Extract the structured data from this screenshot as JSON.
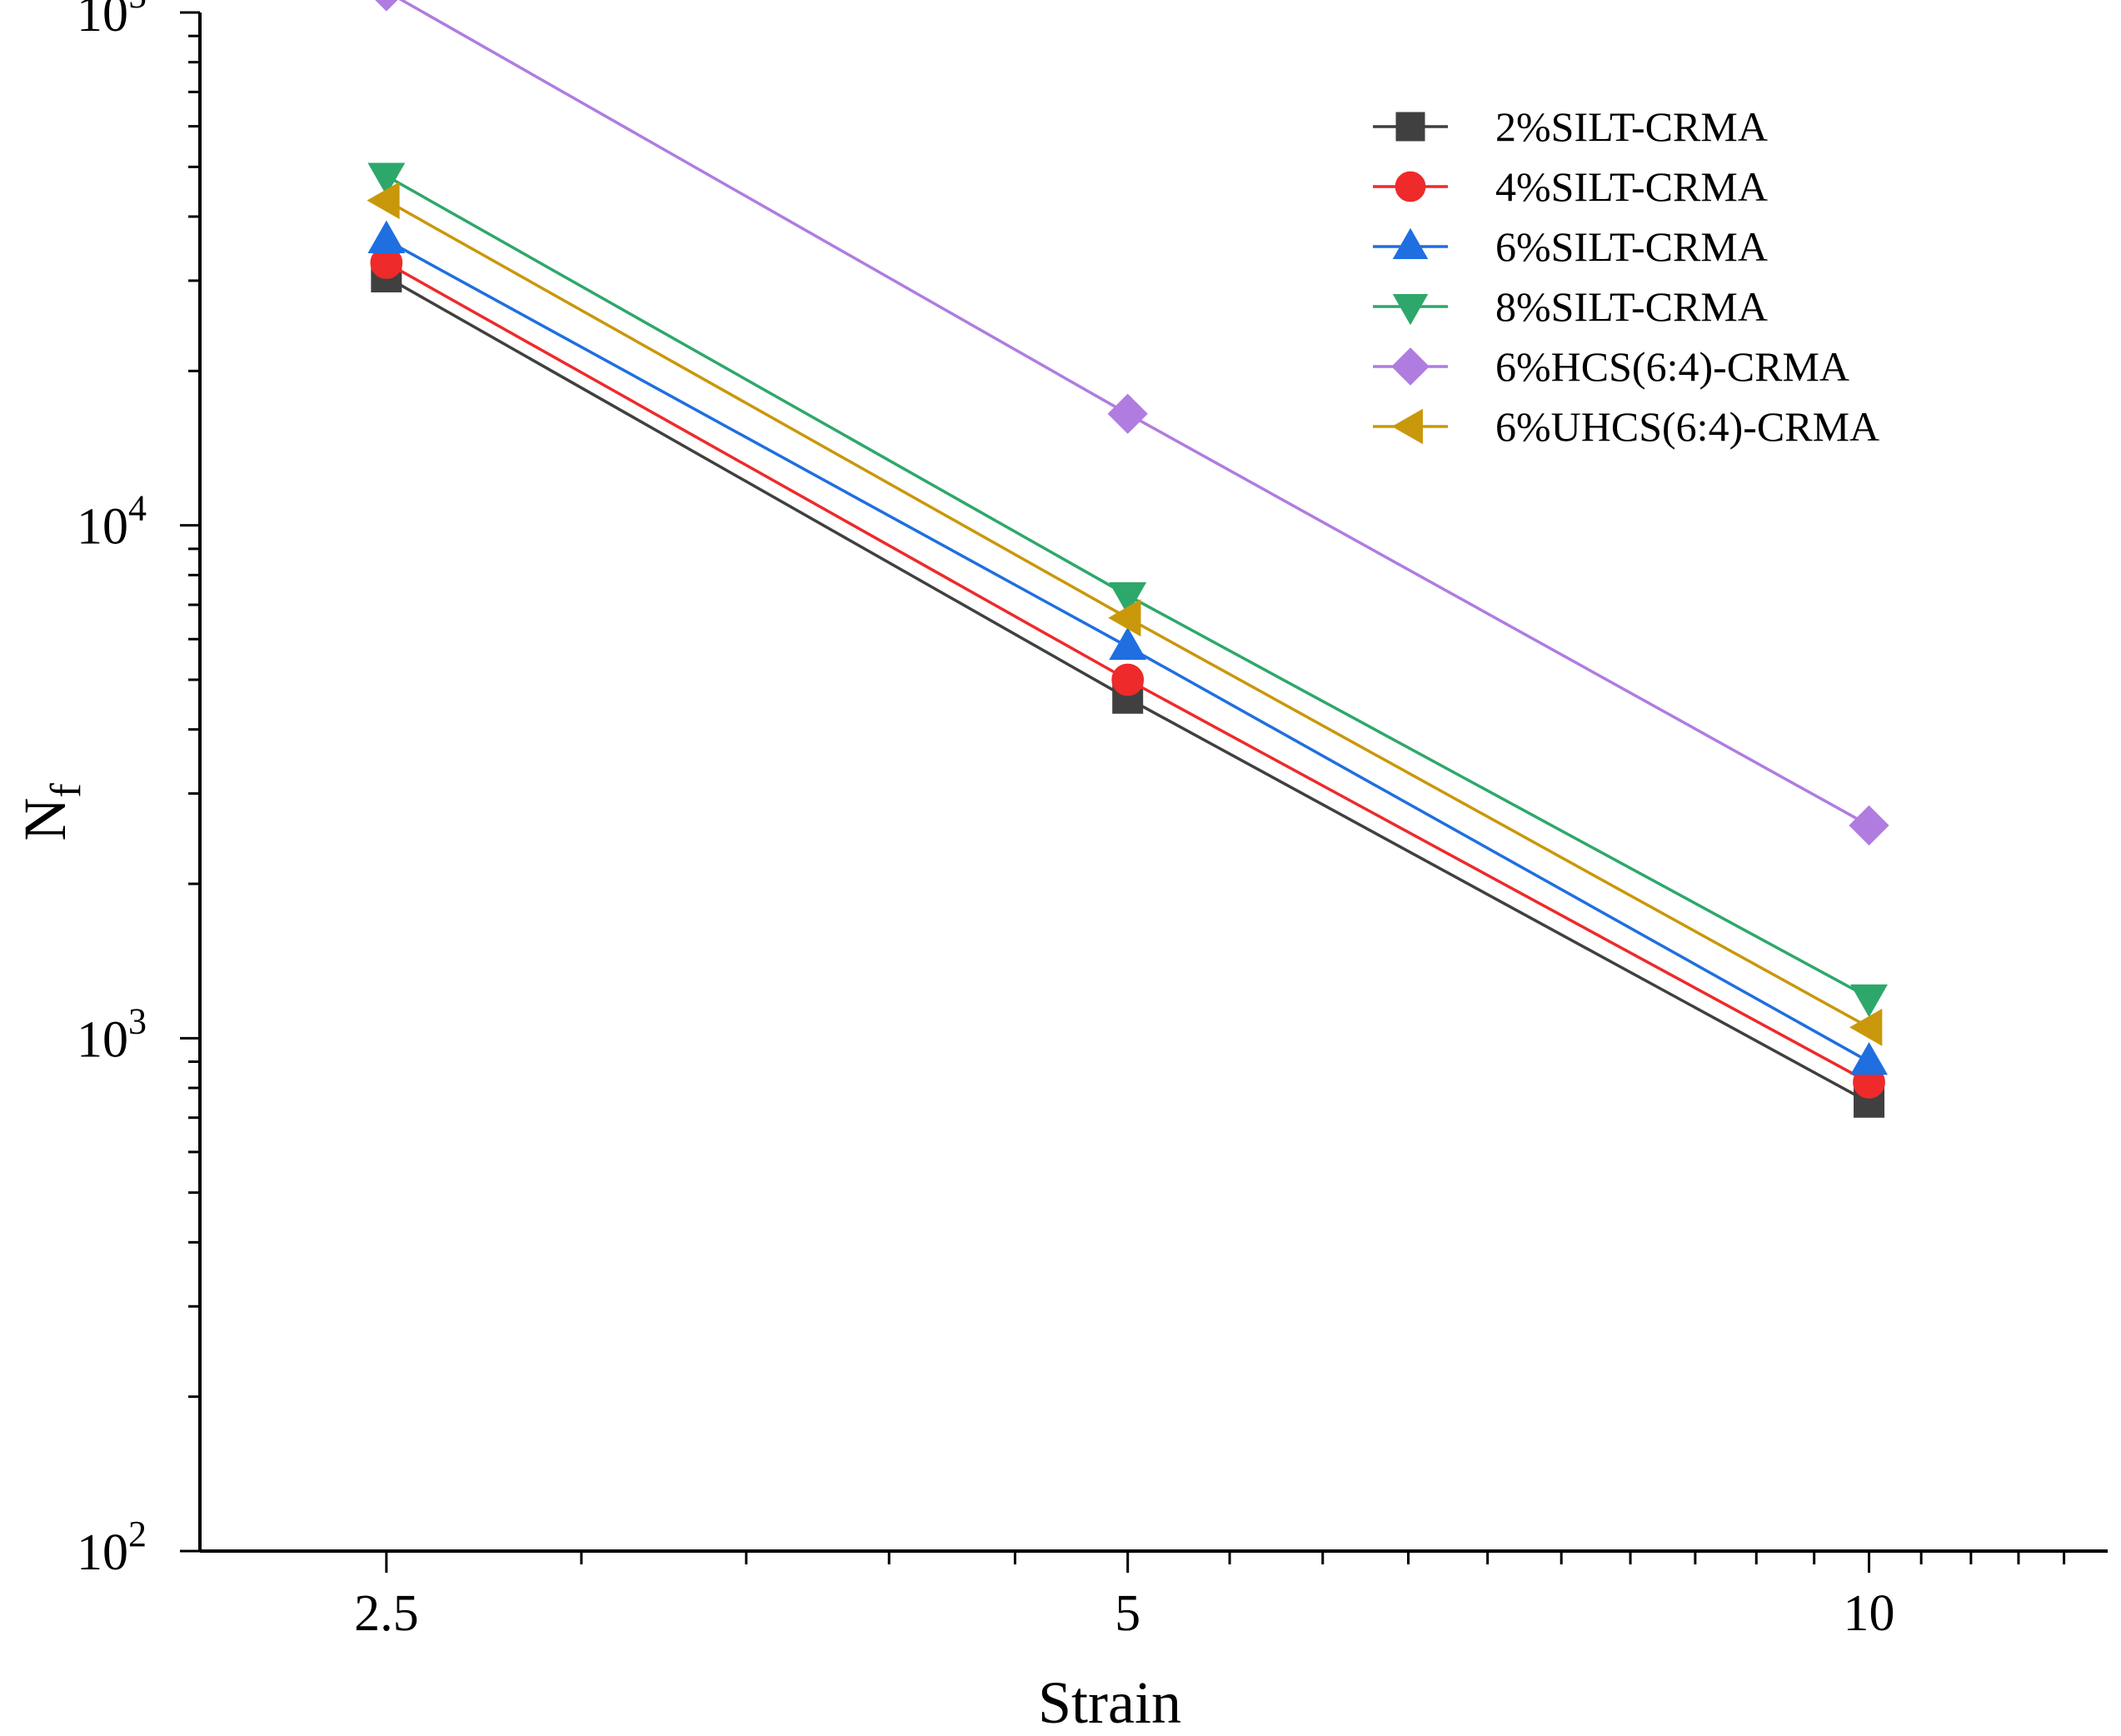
{
  "chart_data": {
    "type": "line",
    "title": "",
    "xlabel": "Strain",
    "ylabel_main": "N",
    "ylabel_sub": "f",
    "x_scale": "log",
    "y_scale": "log",
    "xlim": [
      2.1,
      12.5
    ],
    "ylim": [
      100,
      100000
    ],
    "x_ticks": [
      {
        "value": 2.5,
        "label": "2.5"
      },
      {
        "value": 5,
        "label": "5"
      },
      {
        "value": 10,
        "label": "10"
      }
    ],
    "y_ticks": [
      {
        "value": 100,
        "base": "10",
        "exp": "2"
      },
      {
        "value": 1000,
        "base": "10",
        "exp": "3"
      },
      {
        "value": 10000,
        "base": "10",
        "exp": "4"
      },
      {
        "value": 100000,
        "base": "10",
        "exp": "5"
      }
    ],
    "x": [
      2.5,
      5,
      10
    ],
    "series": [
      {
        "name": "2%SILT-CRMA",
        "color": "#404040",
        "marker": "square",
        "values": [
          30500,
          4600,
          750
        ]
      },
      {
        "name": "4%SILT-CRMA",
        "color": "#ee2a2a",
        "marker": "circle",
        "values": [
          32500,
          5000,
          820
        ]
      },
      {
        "name": "6%SILT-CRMA",
        "color": "#1f6fe0",
        "marker": "triangle-up",
        "values": [
          36000,
          5800,
          900
        ]
      },
      {
        "name": "8%SILT-CRMA",
        "color": "#2ea86a",
        "marker": "triangle-down",
        "values": [
          48000,
          7300,
          1200
        ]
      },
      {
        "name": "6%HCS(6:4)-CRMA",
        "color": "#b07ce0",
        "marker": "diamond",
        "values": [
          110000,
          16500,
          2600
        ]
      },
      {
        "name": "6%UHCS(6:4)-CRMA",
        "color": "#c9980a",
        "marker": "triangle-left",
        "values": [
          43000,
          6600,
          1050
        ]
      }
    ],
    "legend_position": "top-right"
  }
}
